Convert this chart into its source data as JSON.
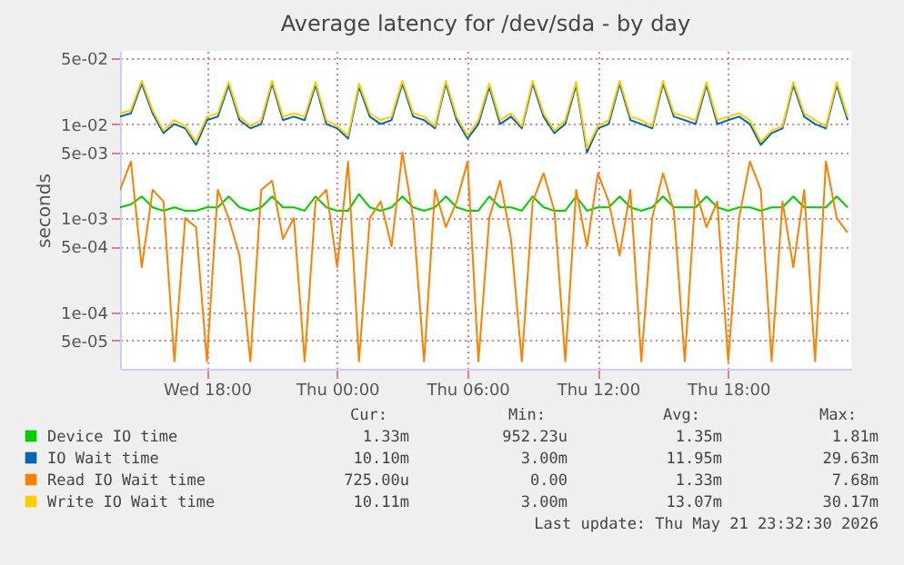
{
  "chart_data": {
    "type": "line",
    "title": "Average latency for /dev/sda - by day",
    "ylabel": "seconds",
    "log": true,
    "grid": true,
    "legend": "bottom",
    "marker": "none",
    "line_style": "solid",
    "xlim": [
      "2026-05-20T14:00",
      "2026-05-21T23:40"
    ],
    "xticks": [
      {
        "value": "2026-05-20T18:00",
        "label": "Wed 18:00"
      },
      {
        "value": "2026-05-21T00:00",
        "label": "Thu 00:00"
      },
      {
        "value": "2026-05-21T06:00",
        "label": "Thu 06:00"
      },
      {
        "value": "2026-05-21T12:00",
        "label": "Thu 12:00"
      },
      {
        "value": "2026-05-21T18:00",
        "label": "Thu 18:00"
      }
    ],
    "ylim": [
      2.5e-05,
      0.06
    ],
    "yticks": [
      {
        "value": 5e-05,
        "label": "5e-05"
      },
      {
        "value": 0.0001,
        "label": "1e-04"
      },
      {
        "value": 0.0005,
        "label": "5e-04"
      },
      {
        "value": 0.001,
        "label": "1e-03"
      },
      {
        "value": 0.005,
        "label": "5e-03"
      },
      {
        "value": 0.01,
        "label": "1e-02"
      },
      {
        "value": 0.05,
        "label": "5e-02"
      }
    ],
    "x": [
      "2026-05-20T14:00",
      "2026-05-20T14:30",
      "2026-05-20T15:00",
      "2026-05-20T15:30",
      "2026-05-20T16:00",
      "2026-05-20T16:30",
      "2026-05-20T17:00",
      "2026-05-20T17:30",
      "2026-05-20T18:00",
      "2026-05-20T18:30",
      "2026-05-20T19:00",
      "2026-05-20T19:30",
      "2026-05-20T20:00",
      "2026-05-20T20:30",
      "2026-05-20T21:00",
      "2026-05-20T21:30",
      "2026-05-20T22:00",
      "2026-05-20T22:30",
      "2026-05-20T23:00",
      "2026-05-20T23:30",
      "2026-05-21T00:00",
      "2026-05-21T00:30",
      "2026-05-21T01:00",
      "2026-05-21T01:30",
      "2026-05-21T02:00",
      "2026-05-21T02:30",
      "2026-05-21T03:00",
      "2026-05-21T03:30",
      "2026-05-21T04:00",
      "2026-05-21T04:30",
      "2026-05-21T05:00",
      "2026-05-21T05:30",
      "2026-05-21T06:00",
      "2026-05-21T06:30",
      "2026-05-21T07:00",
      "2026-05-21T07:30",
      "2026-05-21T08:00",
      "2026-05-21T08:30",
      "2026-05-21T09:00",
      "2026-05-21T09:30",
      "2026-05-21T10:00",
      "2026-05-21T10:30",
      "2026-05-21T11:00",
      "2026-05-21T11:30",
      "2026-05-21T12:00",
      "2026-05-21T12:30",
      "2026-05-21T13:00",
      "2026-05-21T13:30",
      "2026-05-21T14:00",
      "2026-05-21T14:30",
      "2026-05-21T15:00",
      "2026-05-21T15:30",
      "2026-05-21T16:00",
      "2026-05-21T16:30",
      "2026-05-21T17:00",
      "2026-05-21T17:30",
      "2026-05-21T18:00",
      "2026-05-21T18:30",
      "2026-05-21T19:00",
      "2026-05-21T19:30",
      "2026-05-21T20:00",
      "2026-05-21T20:30",
      "2026-05-21T21:00",
      "2026-05-21T21:30",
      "2026-05-21T22:00",
      "2026-05-21T22:30",
      "2026-05-21T23:00",
      "2026-05-21T23:30"
    ],
    "series": [
      {
        "name": "Device IO time",
        "color": "#00cc00",
        "values": [
          0.0013,
          0.0014,
          0.0017,
          0.0013,
          0.0012,
          0.0013,
          0.0012,
          0.0012,
          0.0013,
          0.0013,
          0.0017,
          0.0013,
          0.0012,
          0.0013,
          0.0017,
          0.0013,
          0.0013,
          0.0012,
          0.0017,
          0.0013,
          0.0012,
          0.0012,
          0.0018,
          0.0013,
          0.0012,
          0.0013,
          0.0017,
          0.0013,
          0.0012,
          0.0013,
          0.0017,
          0.0013,
          0.0012,
          0.0012,
          0.0017,
          0.0013,
          0.0013,
          0.0012,
          0.0017,
          0.0013,
          0.0012,
          0.0012,
          0.0017,
          0.0012,
          0.0013,
          0.0013,
          0.0017,
          0.0013,
          0.0012,
          0.0013,
          0.0017,
          0.0013,
          0.0013,
          0.0013,
          0.0017,
          0.0013,
          0.0012,
          0.0013,
          0.0013,
          0.0012,
          0.0013,
          0.0013,
          0.0017,
          0.0013,
          0.0013,
          0.0013,
          0.0017,
          0.0013
        ]
      },
      {
        "name": "IO Wait time",
        "color": "#0066b3",
        "values": [
          0.012,
          0.013,
          0.027,
          0.013,
          0.008,
          0.01,
          0.009,
          0.006,
          0.011,
          0.012,
          0.026,
          0.011,
          0.009,
          0.01,
          0.027,
          0.011,
          0.012,
          0.011,
          0.026,
          0.01,
          0.009,
          0.007,
          0.025,
          0.012,
          0.01,
          0.011,
          0.027,
          0.012,
          0.011,
          0.009,
          0.027,
          0.011,
          0.007,
          0.01,
          0.025,
          0.01,
          0.012,
          0.009,
          0.027,
          0.012,
          0.008,
          0.01,
          0.026,
          0.005,
          0.009,
          0.01,
          0.027,
          0.011,
          0.01,
          0.009,
          0.027,
          0.012,
          0.011,
          0.01,
          0.026,
          0.01,
          0.011,
          0.012,
          0.01,
          0.006,
          0.008,
          0.009,
          0.026,
          0.012,
          0.01,
          0.009,
          0.026,
          0.011
        ]
      },
      {
        "name": "Read IO Wait time",
        "color": "#ff8000",
        "values": [
          0.002,
          0.004,
          0.0003,
          0.002,
          0.0015,
          3e-05,
          0.001,
          0.0008,
          3e-05,
          0.002,
          0.001,
          0.0004,
          3e-05,
          0.002,
          0.0025,
          0.0006,
          0.001,
          3e-05,
          0.0015,
          0.002,
          0.0003,
          0.004,
          3e-05,
          0.001,
          0.0015,
          0.0005,
          0.005,
          0.001,
          3e-05,
          0.002,
          0.0008,
          0.0015,
          0.004,
          3e-05,
          0.001,
          0.0025,
          0.0006,
          3e-05,
          0.0015,
          0.003,
          0.0012,
          3e-05,
          0.002,
          0.0005,
          0.003,
          0.0015,
          0.0004,
          0.002,
          3e-05,
          0.001,
          0.003,
          0.0012,
          3e-05,
          0.002,
          0.0008,
          0.0015,
          3e-05,
          0.001,
          0.004,
          0.002,
          3e-05,
          0.0015,
          0.0003,
          0.002,
          3e-05,
          0.004,
          0.001,
          0.0007
        ]
      },
      {
        "name": "Write IO Wait time",
        "color": "#ffcc00",
        "values": [
          0.013,
          0.014,
          0.029,
          0.014,
          0.0085,
          0.011,
          0.0095,
          0.0065,
          0.012,
          0.013,
          0.028,
          0.012,
          0.0095,
          0.011,
          0.029,
          0.012,
          0.013,
          0.012,
          0.028,
          0.011,
          0.0095,
          0.0075,
          0.027,
          0.013,
          0.011,
          0.012,
          0.029,
          0.013,
          0.012,
          0.0095,
          0.029,
          0.012,
          0.0075,
          0.011,
          0.027,
          0.011,
          0.013,
          0.0095,
          0.029,
          0.013,
          0.0085,
          0.011,
          0.028,
          0.0055,
          0.0095,
          0.011,
          0.029,
          0.012,
          0.011,
          0.0095,
          0.029,
          0.013,
          0.012,
          0.011,
          0.028,
          0.011,
          0.012,
          0.013,
          0.011,
          0.0065,
          0.0085,
          0.0095,
          0.028,
          0.013,
          0.011,
          0.0095,
          0.028,
          0.012
        ]
      }
    ],
    "annotations": [
      "Cur:",
      "Min:",
      "Avg:",
      "Max:",
      "1.33m",
      "952.23u",
      "1.35m",
      "1.81m",
      "10.10m",
      "3.00m",
      "11.95m",
      "29.63m",
      "725.00u",
      "0.00",
      "1.33m",
      "7.68m",
      "10.11m",
      "3.00m",
      "13.07m",
      "30.17m",
      "Last update: Thu May 21 23:32:30 2026"
    ]
  }
}
